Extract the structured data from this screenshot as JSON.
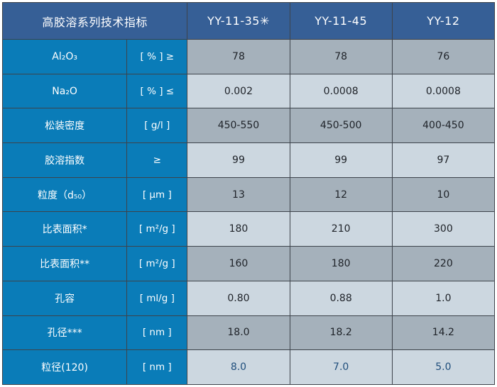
{
  "table": {
    "title": "高胶溶系列技术指标",
    "columns": [
      "YY-11-35✳",
      "YY-11-45",
      "YY-12"
    ],
    "rows": [
      {
        "label": "Al₂O₃",
        "unit": "[ % ] ≥",
        "values": [
          "78",
          "78",
          "76"
        ]
      },
      {
        "label": "Na₂O",
        "unit": "[ % ] ≤",
        "values": [
          "0.002",
          "0.0008",
          "0.0008"
        ]
      },
      {
        "label": "松装密度",
        "unit": "[ g/l ]",
        "values": [
          "450-550",
          "450-500",
          "400-450"
        ]
      },
      {
        "label": "胶溶指数",
        "unit": "≥",
        "values": [
          "99",
          "99",
          "97"
        ]
      },
      {
        "label": "粒度（d₅₀）",
        "unit": "[ μm ]",
        "values": [
          "13",
          "12",
          "10"
        ]
      },
      {
        "label": "比表面积*",
        "unit": "[ m²/g ]",
        "values": [
          "180",
          "210",
          "300"
        ]
      },
      {
        "label": "比表面积**",
        "unit": "[ m²/g ]",
        "values": [
          "160",
          "180",
          "220"
        ]
      },
      {
        "label": "孔容",
        "unit": "[ ml/g ]",
        "values": [
          "0.80",
          "0.88",
          "1.0"
        ]
      },
      {
        "label": "孔径***",
        "unit": "[ nm ]",
        "values": [
          "18.0",
          "18.2",
          "14.2"
        ]
      },
      {
        "label": "粒径(120)",
        "unit": "[ nm ]",
        "values": [
          "8.0",
          "7.0",
          "5.0"
        ]
      }
    ],
    "colors": {
      "header_bg": "#365f96",
      "label_bg": "#0a7cb8",
      "row_dark_bg": "#a5b1bb",
      "row_light_bg": "#ccd7e0",
      "highlight_text": "#1f4e7c"
    }
  }
}
